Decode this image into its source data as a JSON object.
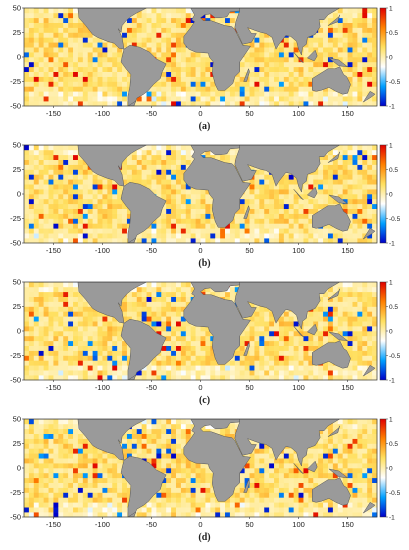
{
  "chart_data": [
    {
      "type": "heatmap",
      "panel_label": "(a)",
      "xlim": [
        -180,
        180
      ],
      "ylim": [
        -50,
        50
      ],
      "x_ticks": [
        -150,
        -100,
        -50,
        0,
        50,
        100,
        150
      ],
      "y_ticks": [
        50,
        25,
        0,
        -25,
        -50
      ],
      "colorbar": {
        "range": [
          -1,
          1
        ],
        "ticks": [
          1,
          0.5,
          0,
          -0.5,
          -1
        ],
        "colors": [
          "#0000c8",
          "#00a0ff",
          "#ffffff",
          "#ffe060",
          "#ff8000",
          "#e00000"
        ]
      },
      "land_color": "#9a9a9a",
      "grid": false
    },
    {
      "type": "heatmap",
      "panel_label": "(b)",
      "xlim": [
        -180,
        180
      ],
      "ylim": [
        -50,
        50
      ],
      "x_ticks": [
        -150,
        -100,
        -50,
        0,
        50,
        100,
        150
      ],
      "y_ticks": [
        50,
        25,
        0,
        -25,
        -50
      ],
      "colorbar": {
        "range": [
          -1,
          1
        ],
        "ticks": [
          1,
          0.5,
          0,
          -0.5,
          -1
        ],
        "colors": [
          "#0000c8",
          "#00a0ff",
          "#ffffff",
          "#ffe060",
          "#ff8000",
          "#e00000"
        ]
      },
      "land_color": "#9a9a9a",
      "grid": false
    },
    {
      "type": "heatmap",
      "panel_label": "(c)",
      "xlim": [
        -180,
        180
      ],
      "ylim": [
        -50,
        50
      ],
      "x_ticks": [
        -150,
        -100,
        -50,
        0,
        50,
        100,
        150
      ],
      "y_ticks": [
        50,
        25,
        0,
        -25,
        -50
      ],
      "colorbar": {
        "range": [
          -1,
          1
        ],
        "ticks": [
          1,
          0.5,
          0,
          -0.5,
          -1
        ],
        "colors": [
          "#0000c8",
          "#00a0ff",
          "#ffffff",
          "#ffe060",
          "#ff8000",
          "#e00000"
        ]
      },
      "land_color": "#9a9a9a",
      "grid": false
    },
    {
      "type": "heatmap",
      "panel_label": "(d)",
      "xlim": [
        -180,
        180
      ],
      "ylim": [
        -50,
        50
      ],
      "x_ticks": [
        -150,
        -100,
        -50,
        0,
        50,
        100,
        150
      ],
      "y_ticks": [
        50,
        25,
        0,
        -25,
        -50
      ],
      "colorbar": {
        "range": [
          -1,
          1
        ],
        "ticks": [
          1,
          0.5,
          0,
          -0.5,
          -1
        ],
        "colors": [
          "#0000c8",
          "#00a0ff",
          "#ffffff",
          "#ffe060",
          "#ff8000",
          "#e00000"
        ]
      },
      "land_color": "#9a9a9a",
      "grid": false
    }
  ]
}
